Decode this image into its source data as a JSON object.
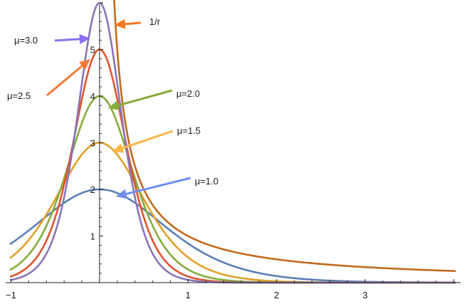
{
  "chart_data": {
    "type": "line",
    "title": "",
    "xlabel": "",
    "ylabel": "",
    "xlim": [
      -1,
      4
    ],
    "ylim": [
      0,
      6
    ],
    "grid": false,
    "x_ticks": [
      {
        "value": -1,
        "label": "−1"
      },
      {
        "value": 1,
        "label": "1"
      },
      {
        "value": 2,
        "label": "2"
      },
      {
        "value": 3,
        "label": "3"
      }
    ],
    "y_ticks": [
      {
        "value": 1,
        "label": "1"
      },
      {
        "value": 2,
        "label": "2"
      },
      {
        "value": 3,
        "label": "3"
      },
      {
        "value": 4,
        "label": "4"
      },
      {
        "value": 5,
        "label": "5"
      }
    ],
    "series": [
      {
        "name": "μ=1.0",
        "mu": 1.0,
        "function": "mu*sech^2(mu*r)/(2*(sech^2... ) ) — peak 2*mu",
        "peak": 2.0,
        "color": "#5b7fb4"
      },
      {
        "name": "μ=1.5",
        "mu": 1.5,
        "peak": 3.0,
        "color": "#e0a028"
      },
      {
        "name": "μ=2.0",
        "mu": 2.0,
        "peak": 4.0,
        "color": "#86ad3b"
      },
      {
        "name": "μ=2.5",
        "mu": 2.5,
        "peak": 5.0,
        "color": "#df5530"
      },
      {
        "name": "μ=3.0",
        "mu": 3.0,
        "peak": 6.0,
        "color": "#8a76b6"
      },
      {
        "name": "1/r",
        "function": "1/r",
        "x_min": 0.1575,
        "color": "#c06a1e"
      }
    ],
    "annotations": [
      {
        "text": "μ=3.0",
        "series": "μ=3.0",
        "arrow_color": "#8a6ff0"
      },
      {
        "text": "1/r",
        "series": "1/r",
        "arrow_color": "#f47a22"
      },
      {
        "text": "μ=2.5",
        "series": "μ=2.5",
        "arrow_color": "#f47a3a"
      },
      {
        "text": "μ=2.0",
        "series": "μ=2.0",
        "arrow_color": "#86ad3b"
      },
      {
        "text": "μ=1.5",
        "series": "μ=1.5",
        "arrow_color": "#fbb545"
      },
      {
        "text": "μ=1.0",
        "series": "μ=1.0",
        "arrow_color": "#6f8ef0"
      }
    ]
  }
}
